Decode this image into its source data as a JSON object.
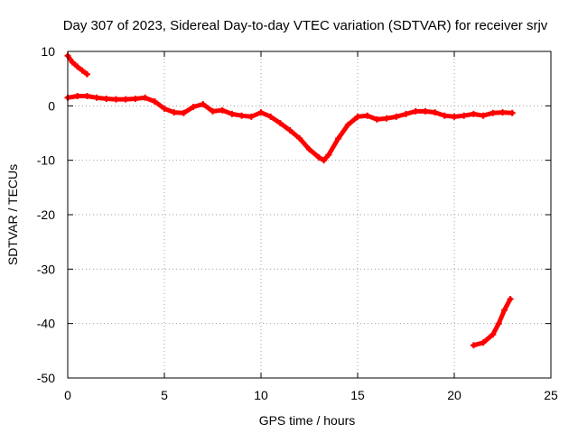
{
  "chart_data": {
    "type": "scatter",
    "title": "Day 307 of 2023, Sidereal Day-to-day VTEC variation (SDTVAR) for receiver srjv",
    "xlabel": "GPS time / hours",
    "ylabel": "SDTVAR / TECUs",
    "xlim": [
      0,
      25
    ],
    "ylim": [
      -50,
      10
    ],
    "xticks": [
      0,
      5,
      10,
      15,
      20,
      25
    ],
    "yticks": [
      10,
      0,
      -10,
      -20,
      -30,
      -40,
      -50
    ],
    "xtick_labels": [
      "0",
      "5",
      "10",
      "15",
      "20",
      "25"
    ],
    "ytick_labels": [
      "10",
      "0",
      "-10",
      "-20",
      "-30",
      "-40",
      "-50"
    ],
    "grid": true,
    "series": [
      {
        "name": "SDTVAR",
        "color": "#ff0000",
        "marker": "plus",
        "segments": [
          {
            "x": [
              0.0,
              0.25,
              0.5,
              0.75,
              1.0
            ],
            "y": [
              9.2,
              8.0,
              7.2,
              6.5,
              5.8
            ]
          },
          {
            "x": [
              0.0,
              0.5,
              1.0,
              1.5,
              2.0,
              2.5,
              3.0,
              3.5,
              4.0,
              4.5,
              5.0,
              5.5,
              6.0,
              6.5,
              7.0,
              7.5,
              8.0,
              8.5,
              9.0,
              9.5,
              10.0,
              10.5,
              11.0,
              11.5,
              12.0,
              12.5,
              13.0,
              13.25,
              13.5,
              14.0,
              14.5,
              15.0,
              15.5,
              16.0,
              16.5,
              17.0,
              17.5,
              18.0,
              18.5,
              19.0,
              19.5,
              20.0,
              20.5,
              21.0,
              21.5,
              22.0,
              22.5,
              23.0
            ],
            "y": [
              1.5,
              1.8,
              1.8,
              1.5,
              1.3,
              1.2,
              1.2,
              1.3,
              1.5,
              0.8,
              -0.5,
              -1.2,
              -1.3,
              -0.2,
              0.3,
              -1.0,
              -0.8,
              -1.5,
              -1.8,
              -2.0,
              -1.2,
              -2.0,
              -3.2,
              -4.5,
              -6.0,
              -8.0,
              -9.5,
              -10.0,
              -9.0,
              -6.0,
              -3.5,
              -2.0,
              -1.8,
              -2.5,
              -2.3,
              -2.0,
              -1.5,
              -1.0,
              -1.0,
              -1.2,
              -1.8,
              -2.0,
              -1.8,
              -1.5,
              -1.8,
              -1.3,
              -1.2,
              -1.3
            ]
          },
          {
            "x": [
              21.0,
              21.5,
              22.0,
              22.3,
              22.6,
              22.9
            ],
            "y": [
              -44.0,
              -43.5,
              -42.0,
              -40.0,
              -37.5,
              -35.5
            ]
          }
        ]
      }
    ]
  }
}
